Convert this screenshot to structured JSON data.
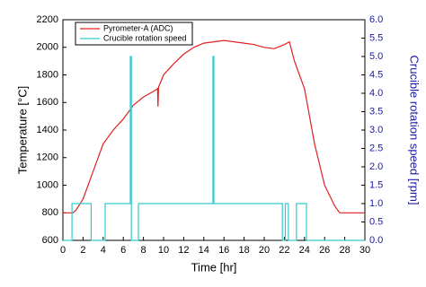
{
  "chart_data": {
    "type": "line",
    "xlabel": "Time [hr]",
    "ylabel": "Temperature [°C]",
    "y2label": "Crucible rotation speed [rpm]",
    "y2_color": "#1a1aa6",
    "xlim": [
      0,
      30
    ],
    "xticks": [
      0,
      2,
      4,
      6,
      8,
      10,
      12,
      14,
      16,
      18,
      20,
      22,
      24,
      26,
      28,
      30
    ],
    "ylim": [
      600,
      2200
    ],
    "yticks": [
      600,
      800,
      1000,
      1200,
      1400,
      1600,
      1800,
      2000,
      2200
    ],
    "y2lim": [
      0,
      6
    ],
    "y2ticks": [
      {
        "value": 0,
        "label": "0.0"
      },
      {
        "value": 0.5,
        "label": "0.5"
      },
      {
        "value": 1,
        "label": "1.0"
      },
      {
        "value": 1.5,
        "label": "1.5"
      },
      {
        "value": 2,
        "label": "2.0"
      },
      {
        "value": 2.5,
        "label": "2.5"
      },
      {
        "value": 3,
        "label": "3.0"
      },
      {
        "value": 3.5,
        "label": "3.5"
      },
      {
        "value": 4,
        "label": "4.0"
      },
      {
        "value": 4.5,
        "label": "4.5"
      },
      {
        "value": 5,
        "label": "5.0"
      },
      {
        "value": 5.5,
        "label": "5.5"
      },
      {
        "value": 6,
        "label": "6.0"
      }
    ],
    "legend": "upper left",
    "series": [
      {
        "name": "Pyrometer-A (ADC)",
        "color": "#e02020",
        "x": [
          0,
          1,
          1.3,
          2,
          2.5,
          3,
          3.5,
          4,
          5,
          6,
          7,
          8,
          9,
          9.4,
          9.45,
          9.5,
          10,
          11,
          12,
          13,
          14,
          15,
          16,
          17,
          18,
          19,
          20,
          21,
          22,
          22.5,
          23,
          24,
          25,
          26,
          27,
          27.5,
          30
        ],
        "values": [
          800,
          800,
          820,
          900,
          1000,
          1100,
          1200,
          1300,
          1400,
          1480,
          1580,
          1640,
          1680,
          1700,
          1570,
          1710,
          1800,
          1880,
          1950,
          2000,
          2030,
          2040,
          2050,
          2040,
          2030,
          2020,
          2000,
          1990,
          2020,
          2040,
          1900,
          1700,
          1300,
          1000,
          850,
          800,
          800
        ]
      },
      {
        "name": "Crucible rotation speed",
        "color": "#33cccc",
        "axis": "y2",
        "x": [
          0,
          0.9,
          0.9,
          2.8,
          2.8,
          4.2,
          4.2,
          6.7,
          6.7,
          6.8,
          6.8,
          7.5,
          7.5,
          14.9,
          14.9,
          15,
          15,
          21.8,
          21.8,
          22.1,
          22.1,
          22.4,
          22.4,
          23.2,
          23.2,
          24.2,
          24.2,
          30
        ],
        "values": [
          0,
          0,
          1,
          1,
          0,
          0,
          1,
          1,
          5,
          5,
          0,
          0,
          1,
          1,
          5,
          5,
          1,
          1,
          0,
          0,
          1,
          1,
          0,
          0,
          1,
          1,
          0,
          0
        ]
      }
    ]
  }
}
